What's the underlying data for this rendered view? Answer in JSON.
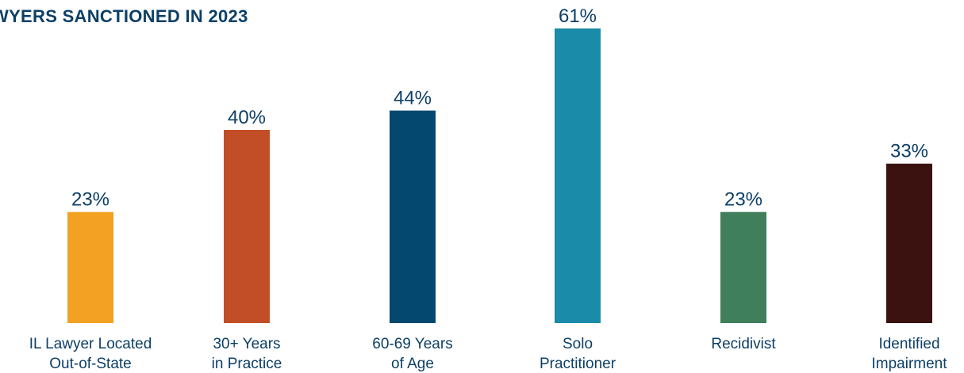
{
  "chart_data": {
    "type": "bar",
    "title": "WYERS SANCTIONED IN 2023",
    "categories": [
      [
        "IL Lawyer Located",
        "Out-of-State"
      ],
      [
        "30+ Years",
        "in Practice"
      ],
      [
        "60-69 Years",
        "of Age"
      ],
      [
        "Solo",
        "Practitioner"
      ],
      [
        "Recidivist"
      ],
      [
        "Identified",
        "Impairment"
      ]
    ],
    "values": [
      23,
      40,
      44,
      61,
      23,
      33
    ],
    "data_labels": [
      "23%",
      "40%",
      "44%",
      "61%",
      "23%",
      "33%"
    ],
    "colors": [
      "#f2a122",
      "#c24e27",
      "#05486f",
      "#1a8ba8",
      "#3f7f5b",
      "#3b1210"
    ],
    "unit": "%",
    "grid": false,
    "legend": "none"
  }
}
